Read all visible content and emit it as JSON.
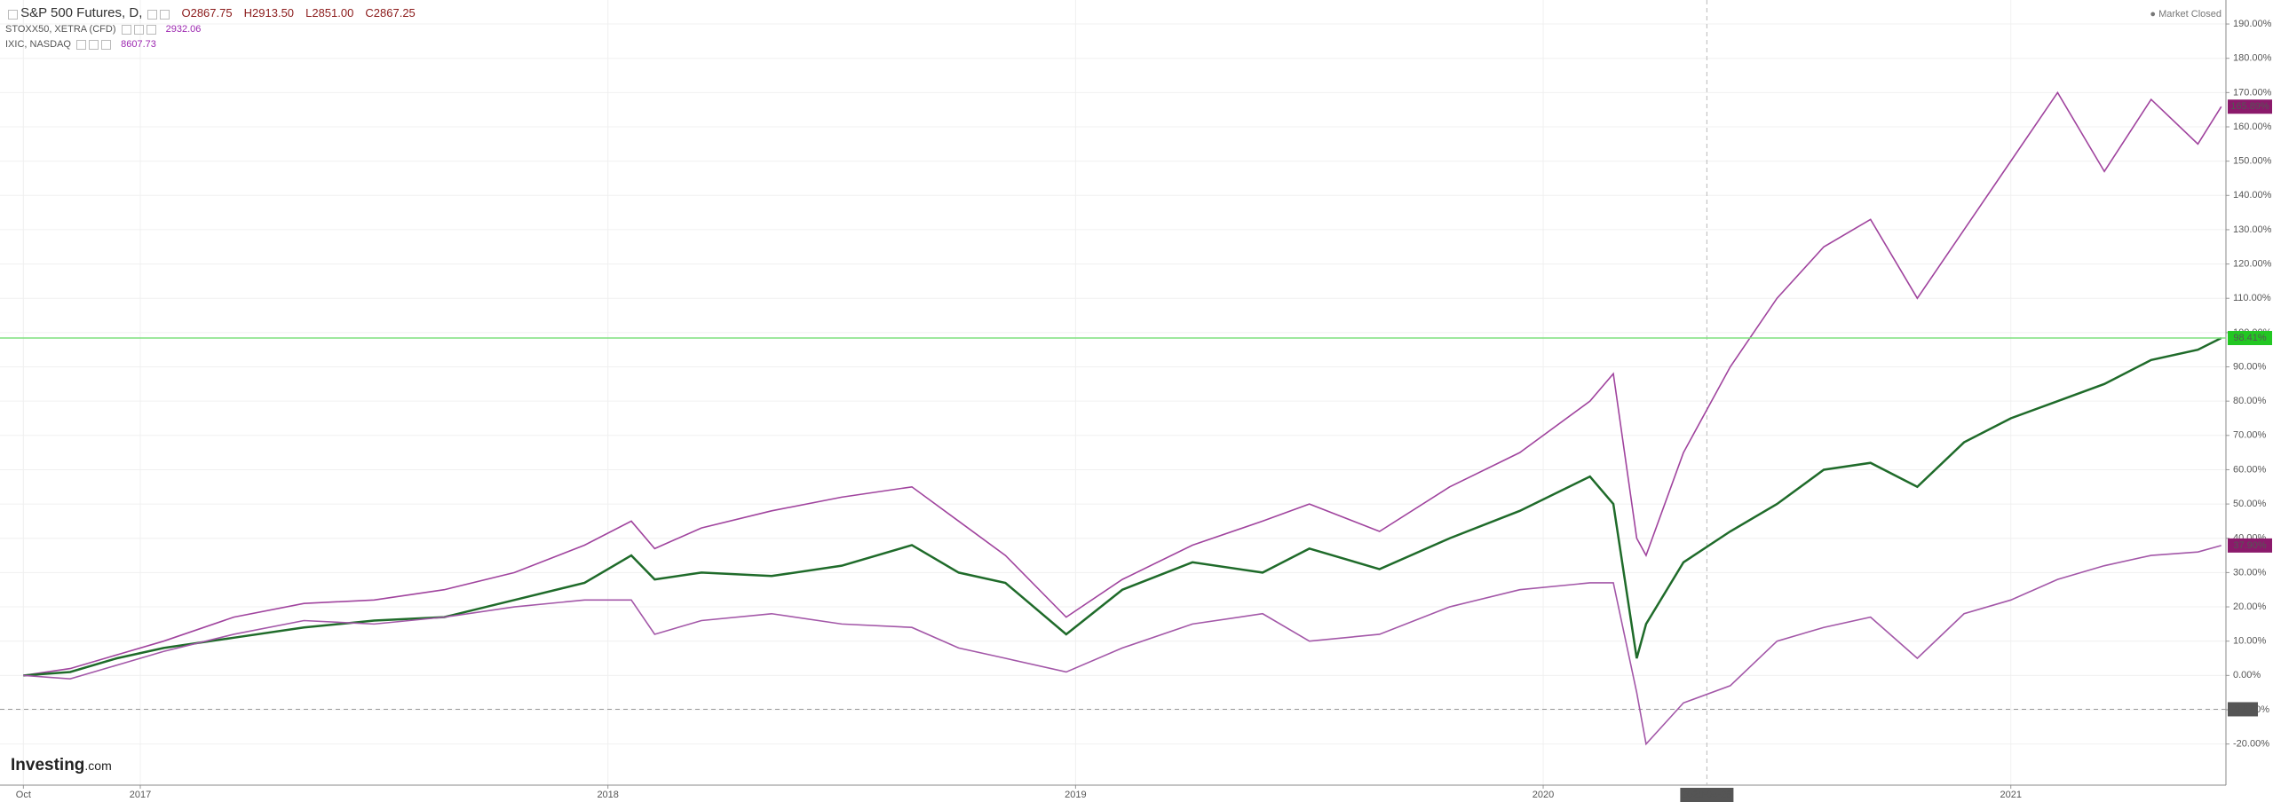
{
  "header": {
    "main_symbol": "S&P 500 Futures, D,",
    "open": "O2867.75",
    "high": "H2913.50",
    "low": "L2851.00",
    "close": "C2867.25",
    "compare": [
      {
        "symbol": "STOXX50, XETRA (CFD)",
        "value": "2932.06"
      },
      {
        "symbol": "IXIC, NASDAQ",
        "value": "8607.73"
      }
    ],
    "status": "Market Closed",
    "logo": "Investing",
    "logo_suffix": ".com"
  },
  "chart_data": {
    "type": "line",
    "x": [
      2016.75,
      2016.85,
      2016.95,
      2017.05,
      2017.2,
      2017.35,
      2017.5,
      2017.65,
      2017.8,
      2017.95,
      2018.05,
      2018.1,
      2018.2,
      2018.35,
      2018.5,
      2018.65,
      2018.75,
      2018.85,
      2018.98,
      2019.1,
      2019.25,
      2019.4,
      2019.5,
      2019.65,
      2019.8,
      2019.95,
      2020.1,
      2020.15,
      2020.2,
      2020.22,
      2020.3,
      2020.4,
      2020.5,
      2020.6,
      2020.7,
      2020.8,
      2020.9,
      2021.0,
      2021.1,
      2021.2,
      2021.3,
      2021.4,
      2021.45
    ],
    "series": [
      {
        "name": "IXIC, NASDAQ",
        "color": "#a0449e",
        "last_label": "165.89%",
        "values": [
          0,
          2,
          6,
          10,
          17,
          21,
          22,
          25,
          30,
          38,
          45,
          37,
          43,
          48,
          52,
          55,
          45,
          35,
          17,
          28,
          38,
          45,
          50,
          42,
          55,
          65,
          80,
          88,
          40,
          35,
          65,
          90,
          110,
          125,
          133,
          110,
          130,
          150,
          170,
          147,
          168,
          155,
          165.89
        ]
      },
      {
        "name": "S&P 500 Futures",
        "color": "#1f6b2a",
        "last_label": "98.41%",
        "values": [
          0,
          1,
          5,
          8,
          11,
          14,
          16,
          17,
          22,
          27,
          35,
          28,
          30,
          29,
          32,
          38,
          30,
          27,
          12,
          25,
          33,
          30,
          37,
          31,
          40,
          48,
          58,
          50,
          5,
          15,
          33,
          42,
          50,
          60,
          62,
          55,
          68,
          75,
          80,
          85,
          92,
          95,
          98.41
        ]
      },
      {
        "name": "STOXX50, XETRA (CFD)",
        "color": "#a357a8",
        "last_label": "37.90%",
        "values": [
          0,
          -1,
          3,
          7,
          12,
          16,
          15,
          17,
          20,
          22,
          22,
          12,
          16,
          18,
          15,
          14,
          8,
          5,
          1,
          8,
          15,
          18,
          10,
          12,
          20,
          25,
          27,
          27,
          -5,
          -20,
          -8,
          -3,
          10,
          14,
          17,
          5,
          18,
          22,
          28,
          32,
          35,
          36,
          37.9
        ]
      }
    ],
    "xlim": [
      2016.7,
      2021.46
    ],
    "xticks": [
      {
        "value": 2016.75,
        "label": "Oct"
      },
      {
        "value": 2017,
        "label": "2017"
      },
      {
        "value": 2018,
        "label": "2018"
      },
      {
        "value": 2019,
        "label": "2019"
      },
      {
        "value": 2020,
        "label": "2020"
      },
      {
        "value": 2021,
        "label": "2021"
      }
    ],
    "ylim": [
      -32,
      197
    ],
    "yticks": [
      {
        "value": -20,
        "label": "-20.00%"
      },
      {
        "value": -10,
        "label": "-10.00%"
      },
      {
        "value": 0,
        "label": "0.00%"
      },
      {
        "value": 10,
        "label": "10.00%"
      },
      {
        "value": 20,
        "label": "20.00%"
      },
      {
        "value": 30,
        "label": "30.00%"
      },
      {
        "value": 40,
        "label": "40.00%"
      },
      {
        "value": 50,
        "label": "50.00%"
      },
      {
        "value": 60,
        "label": "60.00%"
      },
      {
        "value": 70,
        "label": "70.00%"
      },
      {
        "value": 80,
        "label": "80.00%"
      },
      {
        "value": 90,
        "label": "90.00%"
      },
      {
        "value": 100,
        "label": "100.00%"
      },
      {
        "value": 110,
        "label": "110.00%"
      },
      {
        "value": 120,
        "label": "120.00%"
      },
      {
        "value": 130,
        "label": "130.00%"
      },
      {
        "value": 140,
        "label": "140.00%"
      },
      {
        "value": 150,
        "label": "150.00%"
      },
      {
        "value": 160,
        "label": "160.00%"
      },
      {
        "value": 170,
        "label": "170.00%"
      },
      {
        "value": 180,
        "label": "180.00%"
      },
      {
        "value": 190,
        "label": "190.00%"
      }
    ],
    "grid": true,
    "crosshair": {
      "x": {
        "value": 2020.35,
        "label": "2020-04-28"
      },
      "y": {
        "value": -9.87,
        "label": "-9.87"
      }
    }
  }
}
